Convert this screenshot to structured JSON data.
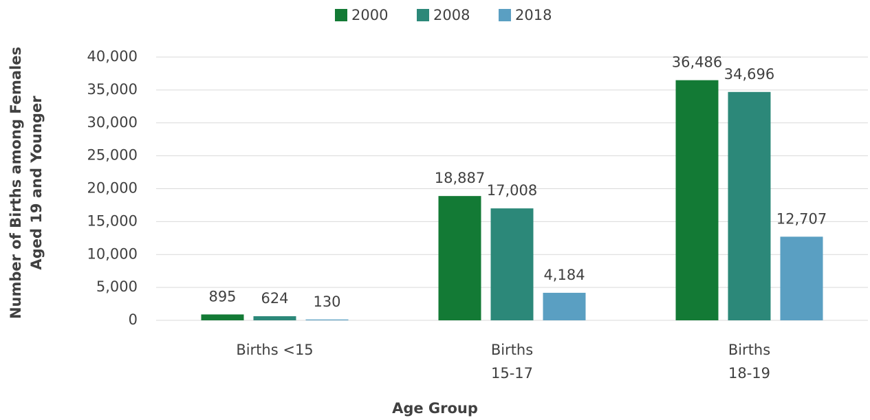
{
  "chart_data": {
    "type": "bar",
    "categories": [
      "Births <15",
      "Births\n15-17",
      "Births\n18-19"
    ],
    "series": [
      {
        "name": "2000",
        "color": "#137a35",
        "values": [
          895,
          18887,
          36486
        ],
        "value_labels": [
          "895",
          "18,887",
          "36,486"
        ]
      },
      {
        "name": "2008",
        "color": "#2c8879",
        "values": [
          624,
          17008,
          34696
        ],
        "value_labels": [
          "624",
          "17,008",
          "34,696"
        ]
      },
      {
        "name": "2018",
        "color": "#5a9fc2",
        "values": [
          130,
          4184,
          12707
        ],
        "value_labels": [
          "130",
          "4,184",
          "12,707"
        ]
      }
    ],
    "x_label": "Age Group",
    "y_label": "Number of Births among Females\nAged 19 and Younger",
    "ylim": [
      0,
      40000
    ],
    "yticks": [
      0,
      {
        "value": 5000,
        "label": "5,000"
      },
      {
        "value": 10000,
        "label": "10,000"
      },
      {
        "value": 15000,
        "label": "15,000"
      },
      {
        "value": 20000,
        "label": "20,000"
      },
      {
        "value": 25000,
        "label": "25,000"
      },
      {
        "value": 30000,
        "label": "30,000"
      },
      {
        "value": 35000,
        "label": "35,000"
      },
      {
        "value": 40000,
        "label": "40,000"
      }
    ],
    "grid": true,
    "legend": "top"
  }
}
